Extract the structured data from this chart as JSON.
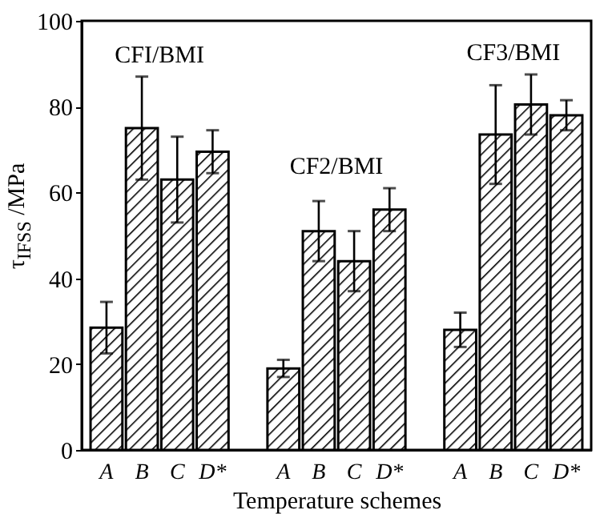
{
  "chart_data": {
    "type": "bar",
    "xlabel": "Temperature schemes",
    "ylabel": "τ$_{IFSS}$ /MPa",
    "categories": [
      "A",
      "B",
      "C",
      "D*",
      null,
      "A",
      "B",
      "C",
      "D*",
      null,
      "A",
      "B",
      "C",
      "D*"
    ],
    "values": [
      28.5,
      75,
      63,
      69.5,
      null,
      19,
      51,
      44,
      56,
      null,
      28,
      73.5,
      80.5,
      78
    ],
    "errors": [
      6,
      12,
      10,
      5,
      null,
      2,
      7,
      7,
      5,
      null,
      4,
      11.5,
      7,
      3.5
    ],
    "color": "#000000",
    "ylim": [
      0,
      100
    ],
    "yticks": [
      0,
      20,
      40,
      60,
      80,
      100
    ],
    "annotations": [
      "CFI/BMI",
      "CF2/BMI",
      "CF3/BMI"
    ]
  }
}
